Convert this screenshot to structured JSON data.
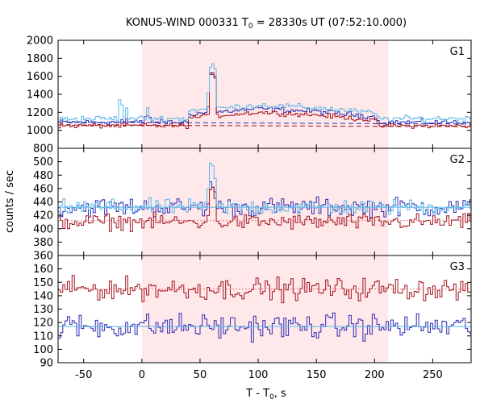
{
  "chart_data": {
    "type": "line",
    "title_prefix": "KONUS-WIND 000331 T",
    "title_sub": "0",
    "title_suffix": " = 28330s UT (07:52:10.000)",
    "xlabel_prefix": "T - T",
    "xlabel_sub": "0",
    "xlabel_suffix": ", s",
    "ylabel": "counts / sec",
    "xlim": [
      -72,
      283
    ],
    "xticks": [
      -50,
      0,
      50,
      100,
      150,
      200,
      250
    ],
    "highlight_interval": [
      0,
      212
    ],
    "highlight_color": "#ffe8ea",
    "colors": {
      "g2_series": "#2b2bb5",
      "g1_series": "#a0141e",
      "sum_series": "#59b7e8",
      "fit_line": "#a0141e"
    },
    "panels": [
      {
        "label": "G1",
        "ylim": [
          800,
          2000
        ],
        "yticks": [
          800,
          1000,
          1200,
          1400,
          1600,
          1800,
          2000
        ],
        "ytick_labels": [
          "800",
          "1000",
          "1200",
          "1400",
          "1600",
          "1800",
          "2000"
        ],
        "bg_blue": 1090,
        "bg_red": 1050,
        "noise_blue": 25,
        "noise_red": 22,
        "noise_sum": 28,
        "sum_offset": 40,
        "peaks_blue": [
          [
            -18,
            1120
          ],
          [
            -14,
            1130
          ],
          [
            2,
            1150
          ],
          [
            4,
            1160
          ],
          [
            6,
            1145
          ],
          [
            56,
            1260
          ],
          [
            58,
            1640
          ],
          [
            60,
            1620
          ],
          [
            62,
            1600
          ],
          [
            64,
            1200
          ]
        ],
        "peaks_red": [
          [
            58,
            1620
          ],
          [
            60,
            1640
          ],
          [
            62,
            1580
          ],
          [
            64,
            1180
          ]
        ],
        "peaks_sum": [
          [
            -20,
            1340
          ],
          [
            -18,
            1280
          ],
          [
            -14,
            1250
          ],
          [
            4,
            1250
          ],
          [
            56,
            1420
          ],
          [
            58,
            1700
          ],
          [
            60,
            1740
          ],
          [
            62,
            1680
          ],
          [
            64,
            1260
          ]
        ],
        "broad_hump": [
          [
            40,
            90
          ],
          [
            100,
            150
          ],
          [
            150,
            120
          ],
          [
            200,
            60
          ]
        ],
        "fit_blue": [
          1090,
          1070
        ],
        "fit_red": [
          1060,
          1040
        ]
      },
      {
        "label": "G2",
        "ylim": [
          360,
          520
        ],
        "yticks": [
          360,
          380,
          400,
          420,
          440,
          460,
          480,
          500
        ],
        "ytick_labels": [
          "360",
          "380",
          "400",
          "420",
          "440",
          "460",
          "480",
          "500"
        ],
        "bg_blue": 432,
        "bg_red": 410,
        "noise_blue": 12,
        "noise_red": 10,
        "noise_sum": 10,
        "sum_offset": 0,
        "peaks_blue": [
          [
            58,
            470
          ],
          [
            60,
            462
          ],
          [
            62,
            455
          ]
        ],
        "peaks_red": [
          [
            58,
            458
          ],
          [
            60,
            462
          ],
          [
            62,
            445
          ]
        ],
        "peaks_sum": [
          [
            56,
            460
          ],
          [
            58,
            498
          ],
          [
            60,
            494
          ],
          [
            62,
            475
          ]
        ],
        "broad_hump": [],
        "fit_blue": [
          432,
          432
        ],
        "fit_red": [
          412,
          412
        ]
      },
      {
        "label": "G3",
        "ylim": [
          90,
          170
        ],
        "yticks": [
          90,
          100,
          110,
          120,
          130,
          140,
          150,
          160
        ],
        "ytick_labels": [
          "90",
          "100",
          "110",
          "120",
          "130",
          "140",
          "150",
          "160"
        ],
        "bg_blue": 117,
        "bg_red": 145,
        "noise_blue": 8,
        "noise_red": 7,
        "noise_sum": 0,
        "sum_offset": 0,
        "peaks_blue": [],
        "peaks_red": [],
        "peaks_sum": [],
        "broad_hump": [],
        "fit_blue": [
          117,
          117
        ],
        "fit_red": [
          145,
          145
        ]
      }
    ]
  }
}
